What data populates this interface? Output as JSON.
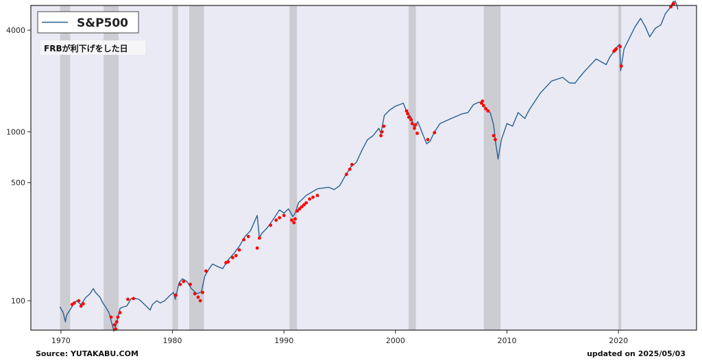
{
  "chart_data": {
    "type": "line",
    "y_scale": "log",
    "grid": false,
    "legend_placement": "top-left",
    "xlim": [
      1967.3,
      2027.0
    ],
    "ylim": [
      67,
      5600
    ],
    "x_ticks": [
      {
        "value": 1970,
        "label": "1970"
      },
      {
        "value": 1980,
        "label": "1980"
      },
      {
        "value": 1990,
        "label": "1990"
      },
      {
        "value": 2000,
        "label": "2000"
      },
      {
        "value": 2010,
        "label": "2010"
      },
      {
        "value": 2020,
        "label": "2020"
      }
    ],
    "y_ticks": [
      {
        "value": 100,
        "label": "100"
      },
      {
        "value": 500,
        "label": "500"
      },
      {
        "value": 1000,
        "label": "1000"
      },
      {
        "value": 4000,
        "label": "4000"
      }
    ],
    "series": [
      {
        "name": "S&P500",
        "color": "#2a5f8f",
        "x": [
          1969.9,
          1970.2,
          1970.4,
          1970.5,
          1970.8,
          1971.2,
          1971.4,
          1971.8,
          1972.2,
          1972.6,
          1972.9,
          1973.1,
          1973.5,
          1973.8,
          1974.0,
          1974.3,
          1974.6,
          1974.75,
          1975.0,
          1975.3,
          1975.6,
          1975.9,
          1976.3,
          1976.7,
          1977.0,
          1977.5,
          1978.0,
          1978.2,
          1978.6,
          1978.9,
          1979.3,
          1979.8,
          1980.1,
          1980.25,
          1980.6,
          1980.9,
          1981.3,
          1981.7,
          1982.2,
          1982.6,
          1982.9,
          1983.3,
          1983.6,
          1984.0,
          1984.5,
          1985.0,
          1985.5,
          1986.0,
          1986.5,
          1987.0,
          1987.6,
          1987.8,
          1988.0,
          1988.5,
          1989.0,
          1989.6,
          1990.0,
          1990.4,
          1990.8,
          1991.0,
          1991.3,
          1992.0,
          1993.0,
          1994.0,
          1994.5,
          1995.0,
          1995.5,
          1996.0,
          1996.5,
          1997.0,
          1997.5,
          1998.0,
          1998.5,
          1998.7,
          1999.0,
          1999.5,
          2000.0,
          2000.5,
          2000.7,
          2001.0,
          2001.4,
          2001.7,
          2002.0,
          2002.5,
          2002.8,
          2003.1,
          2003.5,
          2004.0,
          2005.0,
          2006.0,
          2006.5,
          2007.0,
          2007.5,
          2007.8,
          2008.2,
          2008.5,
          2008.8,
          2009.0,
          2009.2,
          2009.5,
          2010.0,
          2010.5,
          2011.0,
          2011.6,
          2012.0,
          2013.0,
          2014.0,
          2015.0,
          2015.6,
          2016.1,
          2016.5,
          2017.0,
          2018.0,
          2018.9,
          2019.2,
          2019.9,
          2020.1,
          2020.2,
          2020.5,
          2020.9,
          2021.5,
          2021.99,
          2022.4,
          2022.8,
          2023.3,
          2023.8,
          2024.2,
          2024.6,
          2024.9,
          2025.1,
          2025.25,
          2025.33
        ],
        "y": [
          92,
          85,
          75,
          82,
          88,
          97,
          100,
          95,
          104,
          110,
          118,
          112,
          105,
          96,
          92,
          85,
          72,
          66,
          74,
          90,
          92,
          93,
          103,
          103,
          102,
          95,
          88,
          95,
          100,
          97,
          100,
          108,
          112,
          102,
          128,
          135,
          130,
          118,
          110,
          113,
          140,
          155,
          165,
          160,
          155,
          175,
          190,
          210,
          240,
          260,
          320,
          235,
          250,
          270,
          300,
          345,
          330,
          350,
          315,
          330,
          380,
          420,
          460,
          470,
          455,
          480,
          550,
          620,
          660,
          780,
          900,
          950,
          1050,
          980,
          1250,
          1350,
          1420,
          1460,
          1480,
          1320,
          1220,
          1050,
          1150,
          950,
          850,
          880,
          1000,
          1120,
          1200,
          1280,
          1300,
          1450,
          1500,
          1480,
          1350,
          1300,
          1100,
          850,
          690,
          900,
          1120,
          1080,
          1300,
          1200,
          1350,
          1700,
          2000,
          2100,
          1950,
          1940,
          2100,
          2300,
          2700,
          2500,
          2750,
          3200,
          3300,
          2300,
          3100,
          3500,
          4200,
          4700,
          4200,
          3650,
          4100,
          4300,
          5000,
          5400,
          5900,
          5950,
          5600,
          5300
        ]
      }
    ],
    "shaded_spans": [
      {
        "start": 1969.92,
        "end": 1970.83
      },
      {
        "start": 1973.83,
        "end": 1975.17
      },
      {
        "start": 1980.0,
        "end": 1980.5
      },
      {
        "start": 1981.5,
        "end": 1982.83
      },
      {
        "start": 1990.5,
        "end": 1991.17
      },
      {
        "start": 2001.17,
        "end": 2001.83
      },
      {
        "start": 2007.92,
        "end": 2009.42
      },
      {
        "start": 2020.0,
        "end": 2020.25
      }
    ],
    "rate_cut_points": {
      "color": "#ff0000",
      "x": [
        1971.0,
        1971.2,
        1971.6,
        1971.8,
        1972.0,
        1974.5,
        1974.8,
        1974.9,
        1975.0,
        1975.1,
        1975.3,
        1976.0,
        1976.5,
        1980.3,
        1980.7,
        1981.0,
        1981.6,
        1982.0,
        1982.3,
        1982.5,
        1982.7,
        1983.0,
        1984.8,
        1985.0,
        1985.4,
        1985.7,
        1986.0,
        1986.4,
        1986.8,
        1987.6,
        1987.8,
        1988.8,
        1989.3,
        1989.6,
        1990.0,
        1990.7,
        1990.9,
        1991.0,
        1991.2,
        1991.4,
        1991.6,
        1991.8,
        1992.0,
        1992.3,
        1992.6,
        1993.0,
        1995.6,
        1995.9,
        1996.1,
        1998.7,
        1998.8,
        1998.95,
        2001.0,
        2001.1,
        2001.2,
        2001.4,
        2001.5,
        2001.7,
        2001.8,
        2001.95,
        2002.9,
        2003.5,
        2007.7,
        2007.8,
        2007.9,
        2008.1,
        2008.3,
        2008.8,
        2008.95,
        2019.6,
        2019.7,
        2019.8,
        2020.15,
        2020.25,
        2024.7,
        2024.9,
        2024.95
      ],
      "y": [
        95,
        97,
        100,
        93,
        96,
        80,
        72,
        68,
        75,
        80,
        85,
        102,
        103,
        108,
        125,
        130,
        125,
        110,
        105,
        100,
        112,
        150,
        168,
        170,
        180,
        185,
        200,
        230,
        240,
        205,
        235,
        280,
        300,
        310,
        320,
        300,
        290,
        305,
        340,
        350,
        360,
        370,
        380,
        400,
        410,
        420,
        560,
        600,
        640,
        950,
        1000,
        1080,
        1330,
        1280,
        1220,
        1180,
        1120,
        1050,
        1100,
        980,
        900,
        990,
        1480,
        1520,
        1430,
        1370,
        1330,
        950,
        900,
        3000,
        3050,
        3100,
        3200,
        2450,
        5500,
        5700,
        5750
      ]
    }
  },
  "legend": {
    "label": "S&P500"
  },
  "note": {
    "text": "FRBが利下げをした日"
  },
  "footer": {
    "source": "Source: YUTAKABU.COM",
    "updated": "updated on 2025/05/03"
  }
}
